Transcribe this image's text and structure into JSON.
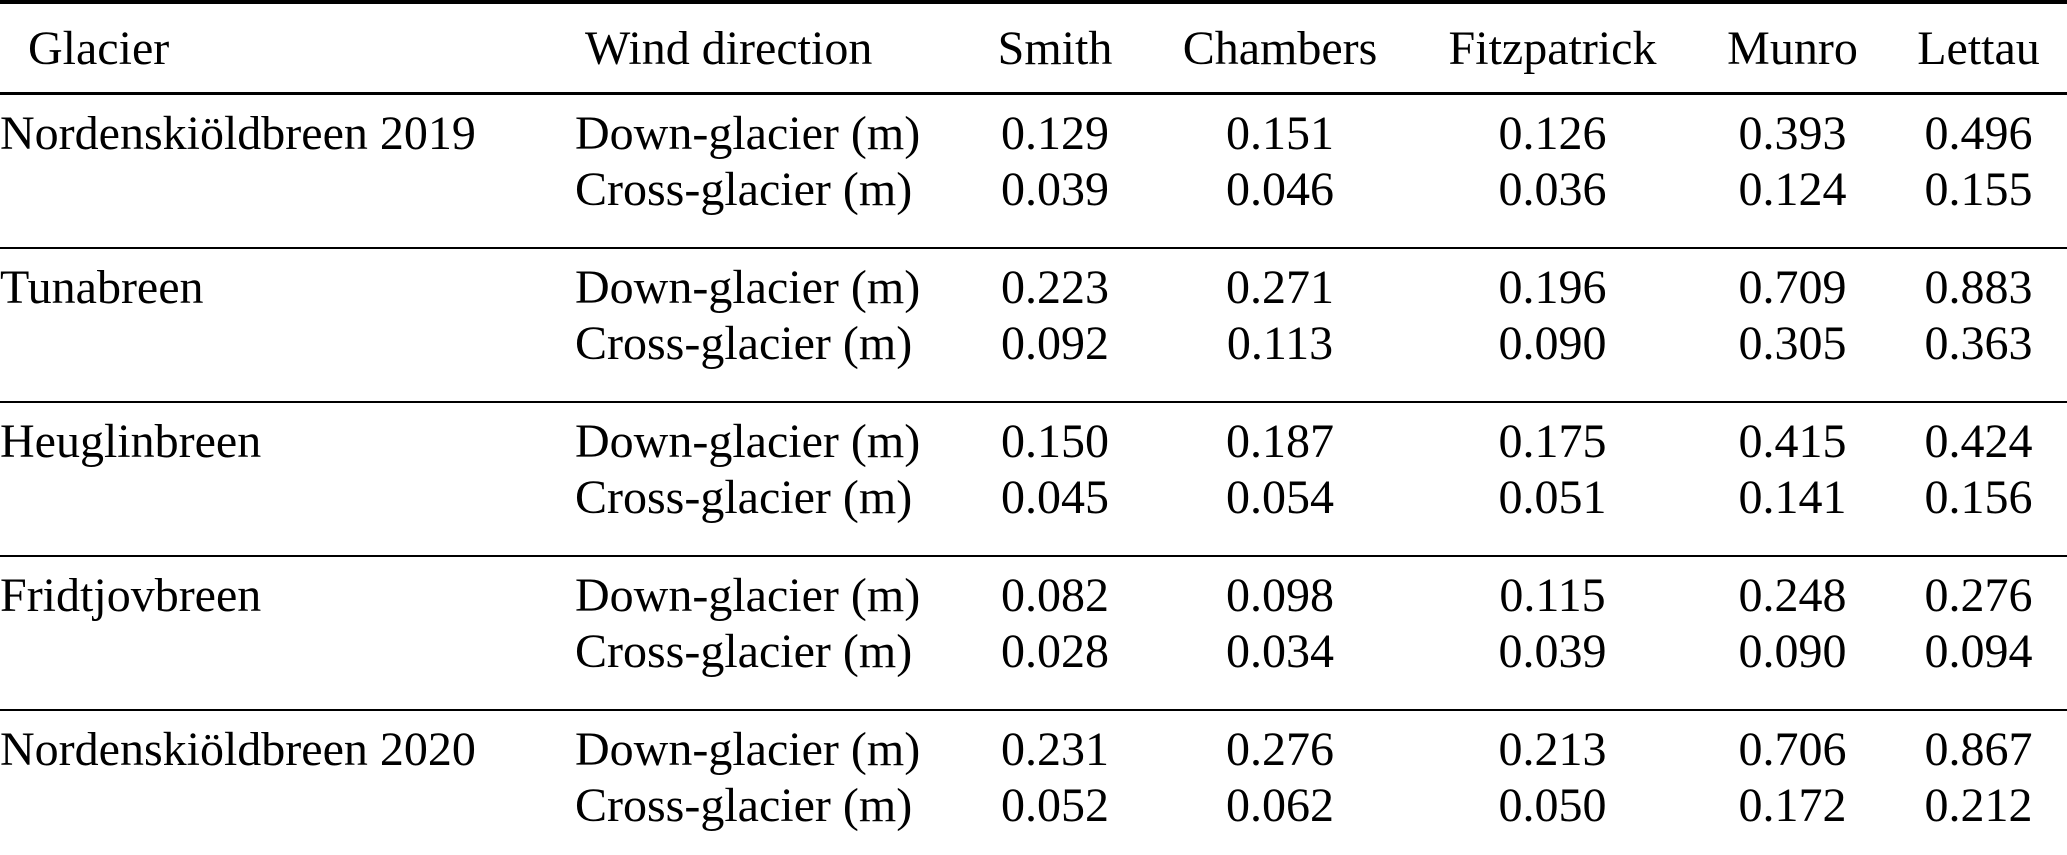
{
  "table": {
    "columns": [
      {
        "label": "Glacier"
      },
      {
        "label": "Wind direction"
      },
      {
        "label": "Smith"
      },
      {
        "label": "Chambers"
      },
      {
        "label": "Fitzpatrick"
      },
      {
        "label": "Munro"
      },
      {
        "label": "Lettau"
      }
    ],
    "groups": [
      {
        "glacier": "Nordenskiöldbreen 2019",
        "rows": [
          {
            "direction": "Down-glacier (m)",
            "values": [
              "0.129",
              "0.151",
              "0.126",
              "0.393",
              "0.496"
            ]
          },
          {
            "direction": "Cross-glacier (m)",
            "values": [
              "0.039",
              "0.046",
              "0.036",
              "0.124",
              "0.155"
            ]
          }
        ]
      },
      {
        "glacier": "Tunabreen",
        "rows": [
          {
            "direction": "Down-glacier (m)",
            "values": [
              "0.223",
              "0.271",
              "0.196",
              "0.709",
              "0.883"
            ]
          },
          {
            "direction": "Cross-glacier (m)",
            "values": [
              "0.092",
              "0.113",
              "0.090",
              "0.305",
              "0.363"
            ]
          }
        ]
      },
      {
        "glacier": "Heuglinbreen",
        "rows": [
          {
            "direction": "Down-glacier (m)",
            "values": [
              "0.150",
              "0.187",
              "0.175",
              "0.415",
              "0.424"
            ]
          },
          {
            "direction": "Cross-glacier (m)",
            "values": [
              "0.045",
              "0.054",
              "0.051",
              "0.141",
              "0.156"
            ]
          }
        ]
      },
      {
        "glacier": "Fridtjovbreen",
        "rows": [
          {
            "direction": "Down-glacier (m)",
            "values": [
              "0.082",
              "0.098",
              "0.115",
              "0.248",
              "0.276"
            ]
          },
          {
            "direction": "Cross-glacier (m)",
            "values": [
              "0.028",
              "0.034",
              "0.039",
              "0.090",
              "0.094"
            ]
          }
        ]
      },
      {
        "glacier": "Nordenskiöldbreen 2020",
        "rows": [
          {
            "direction": "Down-glacier (m)",
            "values": [
              "0.231",
              "0.276",
              "0.213",
              "0.706",
              "0.867"
            ]
          },
          {
            "direction": "Cross-glacier (m)",
            "values": [
              "0.052",
              "0.062",
              "0.050",
              "0.172",
              "0.212"
            ]
          }
        ]
      }
    ]
  }
}
